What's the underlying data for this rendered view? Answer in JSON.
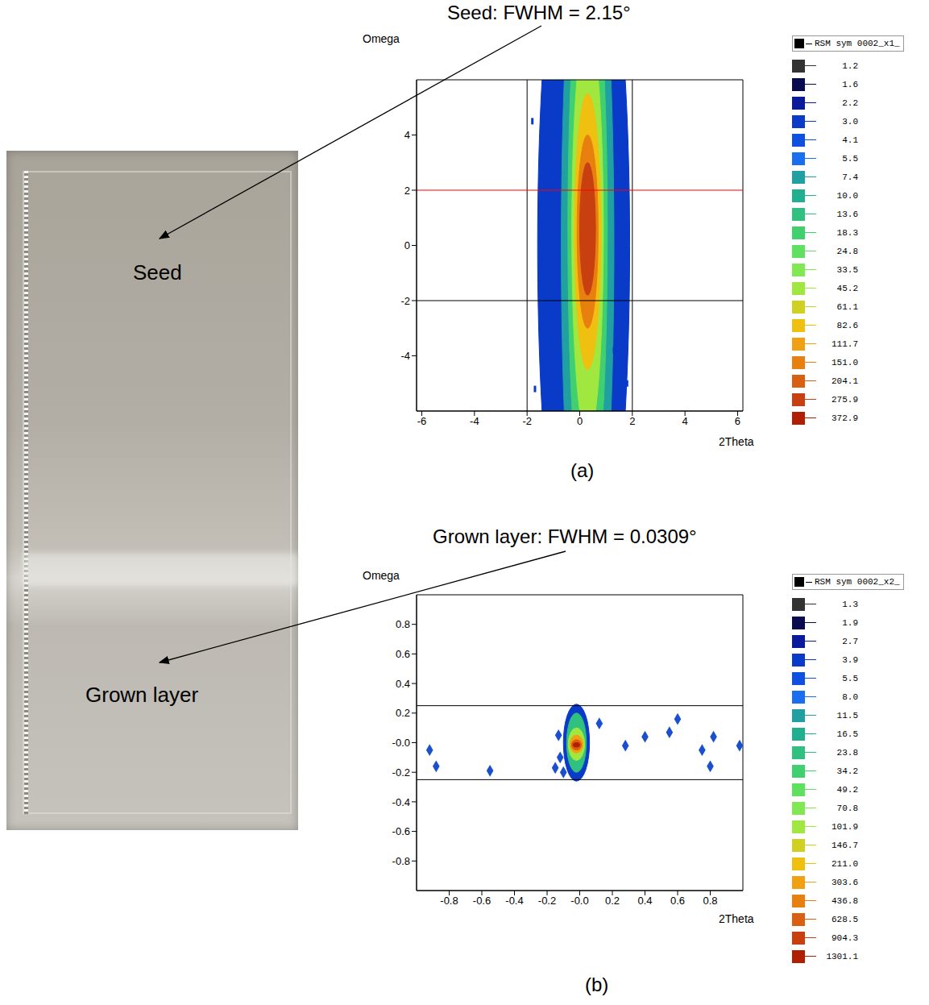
{
  "photo": {
    "labels": [
      "Seed",
      "Grown layer"
    ]
  },
  "chart_data": [
    {
      "type": "contour",
      "panel": "(a)",
      "title": "Seed: FWHM = 2.15°",
      "x_label": "2Theta",
      "y_label": "Omega",
      "xlim": [
        -6.2,
        6.2
      ],
      "xticks": [
        -6,
        -4,
        -2,
        0,
        2,
        4,
        6
      ],
      "ylim": [
        -6,
        6
      ],
      "yticks": [
        -4,
        -2,
        0,
        2,
        4
      ],
      "grid": false,
      "legend": "right",
      "legend_title": "RSM sym 0002_x1_",
      "levels": [
        {
          "value": 1.2,
          "label": "1.2",
          "color": "#333333"
        },
        {
          "value": 1.6,
          "label": "1.6",
          "color": "#0a0a50"
        },
        {
          "value": 2.2,
          "label": "2.2",
          "color": "#0a1a9a"
        },
        {
          "value": 3.0,
          "label": "3.0",
          "color": "#0a3ac8"
        },
        {
          "value": 4.1,
          "label": "4.1",
          "color": "#1050e0"
        },
        {
          "value": 5.5,
          "label": "5.5",
          "color": "#1a6ef0"
        },
        {
          "value": 7.4,
          "label": "7.4",
          "color": "#20a0a0"
        },
        {
          "value": 10.0,
          "label": "10.0",
          "color": "#20b090"
        },
        {
          "value": 13.6,
          "label": "13.6",
          "color": "#30c080"
        },
        {
          "value": 18.3,
          "label": "18.3",
          "color": "#40d070"
        },
        {
          "value": 24.8,
          "label": "24.8",
          "color": "#60e060"
        },
        {
          "value": 33.5,
          "label": "33.5",
          "color": "#80e850"
        },
        {
          "value": 45.2,
          "label": "45.2",
          "color": "#a0e840"
        },
        {
          "value": 61.1,
          "label": "61.1",
          "color": "#d0d020"
        },
        {
          "value": 82.6,
          "label": "82.6",
          "color": "#f0c010"
        },
        {
          "value": 111.7,
          "label": "111.7",
          "color": "#f0a010"
        },
        {
          "value": 151.0,
          "label": "151.0",
          "color": "#e88010"
        },
        {
          "value": 204.1,
          "label": "204.1",
          "color": "#d86010"
        },
        {
          "value": 275.9,
          "label": "275.9",
          "color": "#c84010"
        },
        {
          "value": 372.9,
          "label": "372.9",
          "color": "#b02000"
        }
      ],
      "contours": [
        {
          "level": 3.0,
          "x": [
            -1.6,
            1.9
          ],
          "y": [
            -14,
            14
          ]
        },
        {
          "level": 7.4,
          "x": [
            -0.7,
            1.3
          ],
          "y": [
            -13,
            13
          ]
        },
        {
          "level": 18.3,
          "x": [
            -0.45,
            1.05
          ],
          "y": [
            -10,
            11
          ]
        },
        {
          "level": 45.2,
          "x": [
            -0.3,
            0.9
          ],
          "y": [
            -7,
            8
          ]
        },
        {
          "level": 82.6,
          "x": [
            -0.2,
            0.8
          ],
          "y": [
            -4.5,
            5.5
          ]
        },
        {
          "level": 151.0,
          "x": [
            -0.1,
            0.7
          ],
          "y": [
            -3,
            4
          ]
        },
        {
          "level": 275.9,
          "x": [
            0,
            0.6
          ],
          "y": [
            -1.8,
            3
          ]
        }
      ],
      "points": {
        "marker": "dash",
        "color": "#0a3ac8",
        "x": [
          -1.8,
          -1.5,
          -1.2,
          -1.7,
          1.7,
          1.8,
          1.5,
          1.6,
          -1.4,
          1.3
        ],
        "y": [
          4.5,
          -3,
          5.5,
          -5.2,
          2.5,
          -5,
          -1,
          4.8,
          1.2,
          -3.8
        ]
      },
      "lines": [
        {
          "axis": "x",
          "value": -2,
          "color": "#000000"
        },
        {
          "axis": "x",
          "value": 2,
          "color": "#000000"
        },
        {
          "axis": "y",
          "value": 2,
          "color": "#ff0000"
        },
        {
          "axis": "y",
          "value": -2,
          "color": "#000000"
        }
      ]
    },
    {
      "type": "contour",
      "panel": "(b)",
      "title": "Grown layer: FWHM = 0.0309°",
      "x_label": "2Theta",
      "y_label": "Omega",
      "xlim": [
        -1,
        1
      ],
      "xticks": [
        -0.8,
        -0.6,
        -0.4,
        -0.2,
        {
          "value": 0,
          "label": "-0.0"
        },
        0.2,
        0.4,
        0.6,
        0.8
      ],
      "ylim": [
        -1,
        1
      ],
      "yticks": [
        -0.8,
        -0.6,
        -0.4,
        -0.2,
        {
          "value": 0,
          "label": "-0.0"
        },
        0.2,
        0.4,
        0.6,
        0.8
      ],
      "grid": false,
      "legend": "right",
      "legend_title": "RSM sym 0002_x2_",
      "levels": [
        {
          "value": 1.3,
          "label": "1.3",
          "color": "#333333"
        },
        {
          "value": 1.9,
          "label": "1.9",
          "color": "#0a0a50"
        },
        {
          "value": 2.7,
          "label": "2.7",
          "color": "#0a1a9a"
        },
        {
          "value": 3.9,
          "label": "3.9",
          "color": "#0a3ac8"
        },
        {
          "value": 5.5,
          "label": "5.5",
          "color": "#1050e0"
        },
        {
          "value": 8.0,
          "label": "8.0",
          "color": "#1a6ef0"
        },
        {
          "value": 11.5,
          "label": "11.5",
          "color": "#20a0a0"
        },
        {
          "value": 16.5,
          "label": "16.5",
          "color": "#20b090"
        },
        {
          "value": 23.8,
          "label": "23.8",
          "color": "#30c080"
        },
        {
          "value": 34.2,
          "label": "34.2",
          "color": "#40d070"
        },
        {
          "value": 49.2,
          "label": "49.2",
          "color": "#60e060"
        },
        {
          "value": 70.8,
          "label": "70.8",
          "color": "#80e850"
        },
        {
          "value": 101.9,
          "label": "101.9",
          "color": "#a0e840"
        },
        {
          "value": 146.7,
          "label": "146.7",
          "color": "#d0d020"
        },
        {
          "value": 211.0,
          "label": "211.0",
          "color": "#f0c010"
        },
        {
          "value": 303.6,
          "label": "303.6",
          "color": "#f0a010"
        },
        {
          "value": 436.8,
          "label": "436.8",
          "color": "#e88010"
        },
        {
          "value": 628.5,
          "label": "628.5",
          "color": "#d86010"
        },
        {
          "value": 904.3,
          "label": "904.3",
          "color": "#c84010"
        },
        {
          "value": 1301.1,
          "label": "1301.1",
          "color": "#b02000"
        }
      ],
      "contours": [
        {
          "level": 3.9,
          "x": [
            -0.1,
            0.06
          ],
          "y": [
            -0.26,
            0.26
          ]
        },
        {
          "level": 23.8,
          "x": [
            -0.08,
            0.04
          ],
          "y": [
            -0.2,
            0.2
          ]
        },
        {
          "level": 101.9,
          "x": [
            -0.07,
            0.03
          ],
          "y": [
            -0.12,
            0.1
          ]
        },
        {
          "level": 303.6,
          "x": [
            -0.06,
            0.02
          ],
          "y": [
            -0.07,
            0.05
          ]
        },
        {
          "level": 628.5,
          "x": [
            -0.05,
            0.01
          ],
          "y": [
            -0.05,
            0.02
          ]
        },
        {
          "level": 1301.1,
          "x": [
            -0.04,
            0.0
          ],
          "y": [
            -0.03,
            0.0
          ]
        }
      ],
      "points": {
        "marker": "diamond",
        "color": "#1a50d0",
        "x": [
          -0.92,
          -0.88,
          -0.55,
          -0.13,
          -0.12,
          -0.15,
          -0.1,
          0.12,
          0.28,
          0.4,
          0.55,
          0.6,
          0.75,
          0.8,
          0.82,
          0.98
        ],
        "y": [
          -0.05,
          -0.16,
          -0.19,
          0.05,
          -0.1,
          -0.17,
          -0.2,
          0.13,
          -0.02,
          0.04,
          0.07,
          0.16,
          -0.05,
          -0.16,
          0.04,
          -0.02
        ]
      },
      "lines": [
        {
          "axis": "y",
          "value": 0.25,
          "color": "#000000"
        },
        {
          "axis": "y",
          "value": -0.25,
          "color": "#000000"
        }
      ]
    }
  ]
}
